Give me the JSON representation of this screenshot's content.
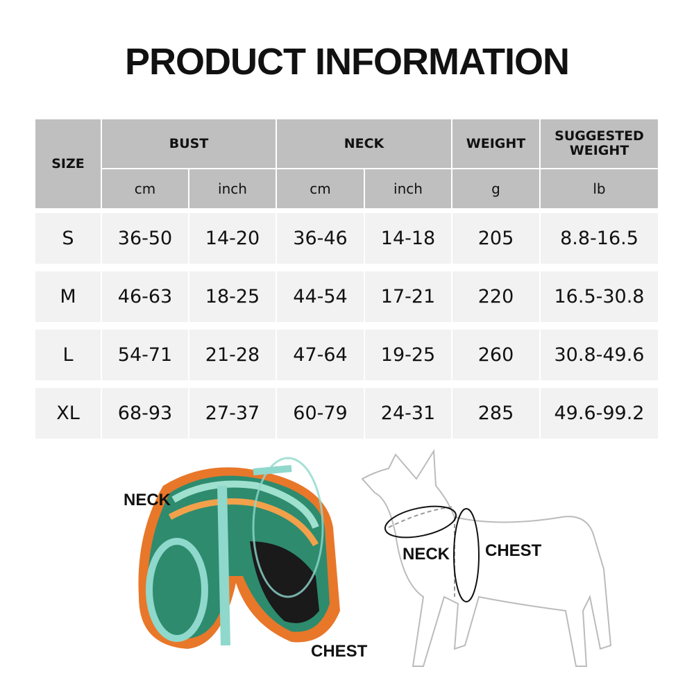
{
  "title": "PRODUCT INFORMATION",
  "table": {
    "size_header": "SIZE",
    "groups": [
      "BUST",
      "NECK",
      "WEIGHT",
      "SUGGESTED WEIGHT"
    ],
    "units": [
      "cm",
      "inch",
      "cm",
      "inch",
      "g",
      "lb"
    ],
    "rows": [
      [
        "S",
        "36-50",
        "14-20",
        "36-46",
        "14-18",
        "205",
        "8.8-16.5"
      ],
      [
        "M",
        "46-63",
        "18-25",
        "44-54",
        "17-21",
        "220",
        "16.5-30.8"
      ],
      [
        "L",
        "54-71",
        "21-28",
        "47-64",
        "19-25",
        "260",
        "30.8-49.6"
      ],
      [
        "XL",
        "68-93",
        "27-37",
        "60-79",
        "24-31",
        "285",
        "49.6-99.2"
      ]
    ]
  },
  "diagram": {
    "harness_neck_label": "NECK",
    "harness_chest_label": "CHEST",
    "dog_neck_label": "NECK",
    "dog_chest_label": "CHEST"
  },
  "colors": {
    "header_bg": "#bfbfbf",
    "row_bg": "#f2f2f2",
    "harness_orange": "#e8772a",
    "harness_mint": "#8fd8cc"
  }
}
